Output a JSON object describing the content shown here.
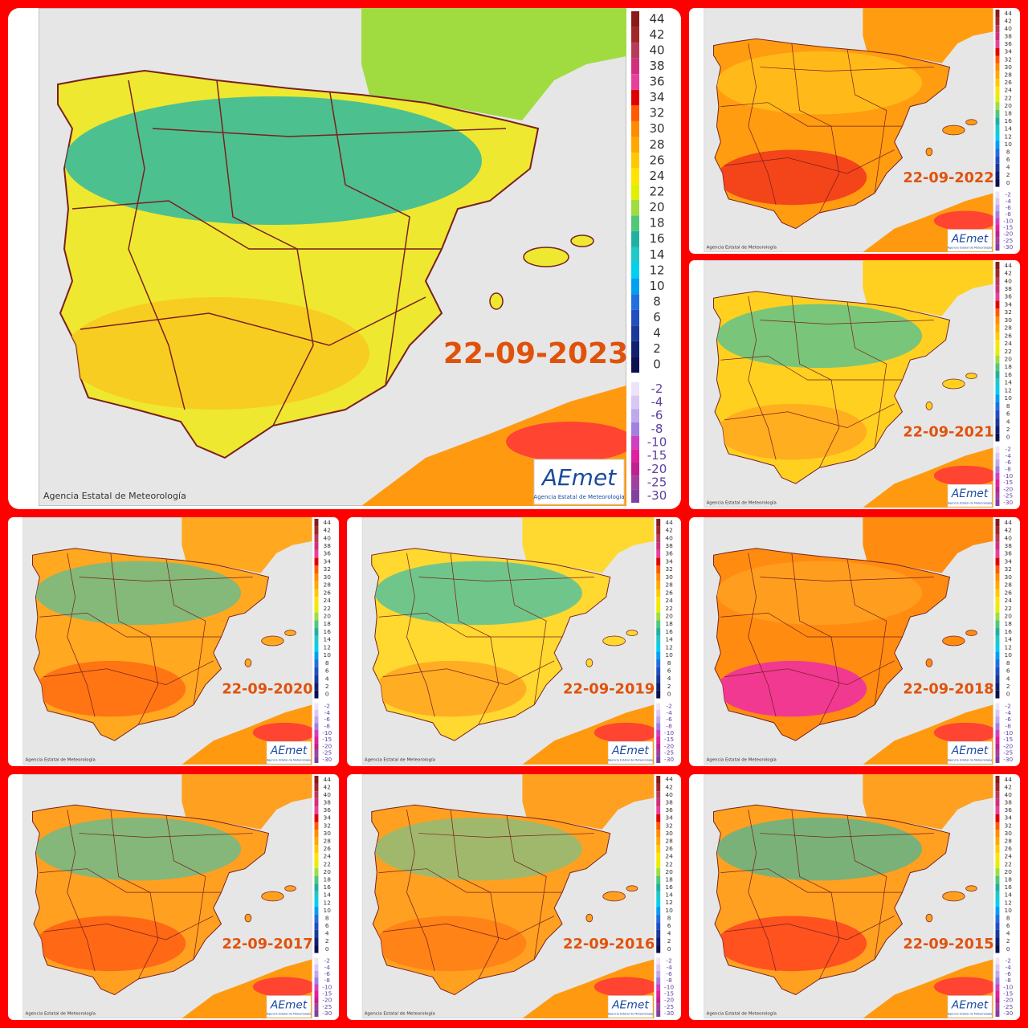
{
  "panels": [
    {
      "date": "22-09-2023"
    },
    {
      "date": "22-09-2022"
    },
    {
      "date": "22-09-2021"
    },
    {
      "date": "22-09-2020"
    },
    {
      "date": "22-09-2019"
    },
    {
      "date": "22-09-2018"
    },
    {
      "date": "22-09-2017"
    },
    {
      "date": "22-09-2016"
    },
    {
      "date": "22-09-2015"
    }
  ],
  "legend": {
    "labels": [
      44,
      42,
      40,
      38,
      36,
      34,
      32,
      30,
      28,
      26,
      24,
      22,
      20,
      18,
      16,
      14,
      12,
      10,
      8,
      6,
      4,
      2,
      0,
      -2,
      -4,
      -6,
      -8,
      -10,
      -15,
      -20,
      -25,
      -30
    ],
    "colors": [
      "#8b1a1a",
      "#a02828",
      "#b83a5a",
      "#d0307e",
      "#e8409a",
      "#e00000",
      "#ff5a00",
      "#ff8c00",
      "#ffa800",
      "#ffc800",
      "#ffe400",
      "#e0f000",
      "#a0dc40",
      "#50c878",
      "#20b0a0",
      "#20c8c8",
      "#00d0f0",
      "#00a0f0",
      "#2070e0",
      "#2050c0",
      "#1a3a9a",
      "#102070",
      "#0a1050",
      "#ece4f8",
      "#d8c8f2",
      "#c0a8ec",
      "#a080e2",
      "#d040c0",
      "#e020a0",
      "#c02090",
      "#a040a0",
      "#8040a0"
    ]
  },
  "credit": "Agencia Estatal de Meteorología",
  "logo": {
    "name": "AEmet",
    "subtitle": "Agencia Estatal de Meteorología"
  }
}
